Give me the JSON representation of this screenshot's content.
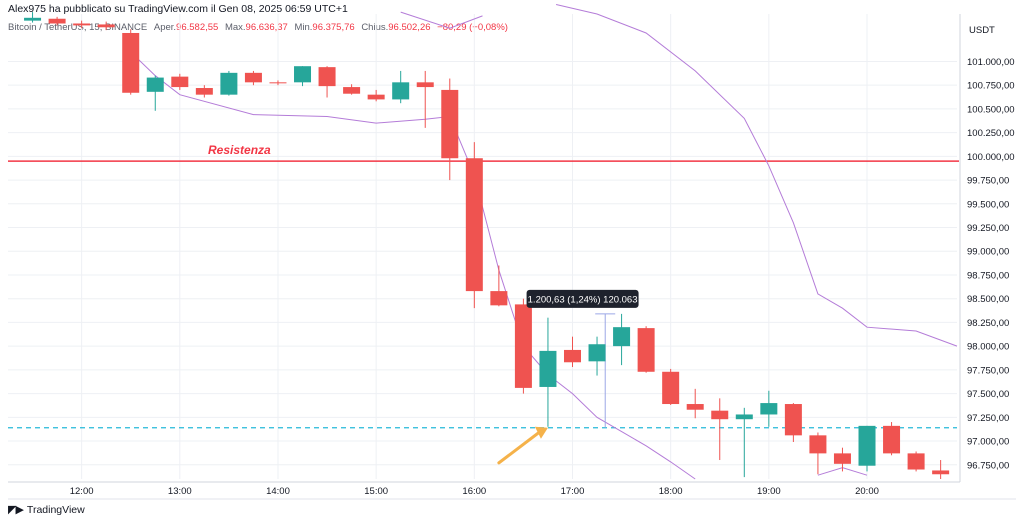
{
  "header": {
    "author_line": "Alex975 ha pubblicato su TradingView.com il Gen 08, 2025 06:59 UTC+1",
    "symbol": "Bitcoin / TetherUS, 15, BINANCE",
    "open_label": "Aper.",
    "open_value": "96.582,55",
    "high_label": "Max.",
    "high_value": "96.636,37",
    "low_label": "Min.",
    "low_value": "96.375,76",
    "close_label": "Chius.",
    "close_value": "96.502,26",
    "change_value": "−80,29 (−0,08%)"
  },
  "footer": {
    "brand": "TradingView"
  },
  "colors": {
    "up": "#26a69a",
    "down": "#ef5350",
    "resistance": "#f23645",
    "envelope": "#b47cd8",
    "dashed": "#26b9d9",
    "arrow": "#f5b24a"
  },
  "chart_data": {
    "type": "candlestick",
    "currency": "USDT",
    "xlim": [
      "11:15",
      "20:55"
    ],
    "ylim": [
      96600,
      101500
    ],
    "x_ticks": [
      "12:00",
      "13:00",
      "14:00",
      "15:00",
      "16:00",
      "17:00",
      "18:00",
      "19:00",
      "20:00"
    ],
    "y_ticks": [
      "101.000,00",
      "100.750,00",
      "100.500,00",
      "100.250,00",
      "100.000,00",
      "99.750,00",
      "99.500,00",
      "99.250,00",
      "99.000,00",
      "98.750,00",
      "98.500,00",
      "98.250,00",
      "98.000,00",
      "97.750,00",
      "97.500,00",
      "97.250,00",
      "97.000,00",
      "96.750,00"
    ],
    "candles": [
      {
        "t": "11:30",
        "o": 101430,
        "h": 101520,
        "l": 101410,
        "c": 101460
      },
      {
        "t": "11:45",
        "o": 101450,
        "h": 101470,
        "l": 101380,
        "c": 101400
      },
      {
        "t": "12:00",
        "o": 101400,
        "h": 101430,
        "l": 101350,
        "c": 101380
      },
      {
        "t": "12:15",
        "o": 101390,
        "h": 101420,
        "l": 101330,
        "c": 101360
      },
      {
        "t": "12:30",
        "o": 101300,
        "h": 101340,
        "l": 100650,
        "c": 100670
      },
      {
        "t": "12:45",
        "o": 100680,
        "h": 100850,
        "l": 100480,
        "c": 100830
      },
      {
        "t": "13:00",
        "o": 100840,
        "h": 100870,
        "l": 100700,
        "c": 100730
      },
      {
        "t": "13:15",
        "o": 100720,
        "h": 100750,
        "l": 100620,
        "c": 100650
      },
      {
        "t": "13:30",
        "o": 100650,
        "h": 100900,
        "l": 100640,
        "c": 100880
      },
      {
        "t": "13:45",
        "o": 100880,
        "h": 100900,
        "l": 100750,
        "c": 100780
      },
      {
        "t": "14:00",
        "o": 100780,
        "h": 100800,
        "l": 100750,
        "c": 100770
      },
      {
        "t": "14:15",
        "o": 100780,
        "h": 100950,
        "l": 100740,
        "c": 100950
      },
      {
        "t": "14:30",
        "o": 100940,
        "h": 100950,
        "l": 100620,
        "c": 100740
      },
      {
        "t": "14:45",
        "o": 100730,
        "h": 100760,
        "l": 100650,
        "c": 100660
      },
      {
        "t": "15:00",
        "o": 100650,
        "h": 100700,
        "l": 100580,
        "c": 100600
      },
      {
        "t": "15:15",
        "o": 100600,
        "h": 100900,
        "l": 100560,
        "c": 100780
      },
      {
        "t": "15:30",
        "o": 100780,
        "h": 100900,
        "l": 100300,
        "c": 100730
      },
      {
        "t": "15:45",
        "o": 100700,
        "h": 100820,
        "l": 99750,
        "c": 99980
      },
      {
        "t": "16:00",
        "o": 99980,
        "h": 100150,
        "l": 98400,
        "c": 98580
      },
      {
        "t": "16:15",
        "o": 98580,
        "h": 98850,
        "l": 98420,
        "c": 98430
      },
      {
        "t": "16:30",
        "o": 98440,
        "h": 98500,
        "l": 97500,
        "c": 97560
      },
      {
        "t": "16:45",
        "o": 97570,
        "h": 98300,
        "l": 97150,
        "c": 97950
      },
      {
        "t": "17:00",
        "o": 97960,
        "h": 98100,
        "l": 97780,
        "c": 97830
      },
      {
        "t": "17:15",
        "o": 97840,
        "h": 98100,
        "l": 97690,
        "c": 98020
      },
      {
        "t": "17:30",
        "o": 98000,
        "h": 98340,
        "l": 97800,
        "c": 98200
      },
      {
        "t": "17:45",
        "o": 98190,
        "h": 98210,
        "l": 97720,
        "c": 97730
      },
      {
        "t": "18:00",
        "o": 97730,
        "h": 97760,
        "l": 97380,
        "c": 97390
      },
      {
        "t": "18:15",
        "o": 97390,
        "h": 97550,
        "l": 97240,
        "c": 97330
      },
      {
        "t": "18:30",
        "o": 97320,
        "h": 97450,
        "l": 96800,
        "c": 97230
      },
      {
        "t": "18:45",
        "o": 97230,
        "h": 97350,
        "l": 96620,
        "c": 97280
      },
      {
        "t": "19:00",
        "o": 97280,
        "h": 97530,
        "l": 97150,
        "c": 97400
      },
      {
        "t": "19:15",
        "o": 97390,
        "h": 97400,
        "l": 96990,
        "c": 97060
      },
      {
        "t": "19:30",
        "o": 97060,
        "h": 97090,
        "l": 96650,
        "c": 96870
      },
      {
        "t": "19:45",
        "o": 96870,
        "h": 96930,
        "l": 96680,
        "c": 96760
      },
      {
        "t": "20:00",
        "o": 96740,
        "h": 97160,
        "l": 96680,
        "c": 97160
      },
      {
        "t": "20:15",
        "o": 97160,
        "h": 97200,
        "l": 96850,
        "c": 96870
      },
      {
        "t": "20:30",
        "o": 96870,
        "h": 96890,
        "l": 96680,
        "c": 96700
      },
      {
        "t": "20:45",
        "o": 96690,
        "h": 96800,
        "l": 96600,
        "c": 96650
      }
    ],
    "upper_band": [
      {
        "t": "16:50",
        "v": 101600
      },
      {
        "t": "17:15",
        "v": 101500
      },
      {
        "t": "17:45",
        "v": 101300
      },
      {
        "t": "18:15",
        "v": 100900
      },
      {
        "t": "18:45",
        "v": 100400
      },
      {
        "t": "19:00",
        "v": 99900
      },
      {
        "t": "19:15",
        "v": 99300
      },
      {
        "t": "19:30",
        "v": 98550
      },
      {
        "t": "19:45",
        "v": 98400
      },
      {
        "t": "20:00",
        "v": 98200
      },
      {
        "t": "20:30",
        "v": 98160
      },
      {
        "t": "20:55",
        "v": 98000
      }
    ],
    "lower_band": [
      {
        "t": "12:30",
        "v": 101100
      },
      {
        "t": "12:45",
        "v": 100850
      },
      {
        "t": "13:00",
        "v": 100650
      },
      {
        "t": "13:45",
        "v": 100440
      },
      {
        "t": "14:30",
        "v": 100420
      },
      {
        "t": "15:00",
        "v": 100350
      },
      {
        "t": "15:30",
        "v": 100390
      },
      {
        "t": "15:45",
        "v": 100420
      },
      {
        "t": "16:00",
        "v": 99800
      },
      {
        "t": "16:15",
        "v": 98800
      },
      {
        "t": "16:30",
        "v": 98000
      },
      {
        "t": "16:45",
        "v": 97700
      },
      {
        "t": "17:00",
        "v": 97500
      },
      {
        "t": "17:15",
        "v": 97250
      },
      {
        "t": "17:30",
        "v": 97100
      },
      {
        "t": "17:45",
        "v": 96950
      },
      {
        "t": "18:00",
        "v": 96780
      },
      {
        "t": "18:15",
        "v": 96600
      }
    ],
    "upper_band_top_left": [
      {
        "t": "15:15",
        "v": 101520
      },
      {
        "t": "15:45",
        "v": 101350
      },
      {
        "t": "16:05",
        "v": 101480
      }
    ],
    "lower_band_right": [
      {
        "t": "19:30",
        "v": 96640
      },
      {
        "t": "19:45",
        "v": 96720
      },
      {
        "t": "20:00",
        "v": 96640
      }
    ],
    "resistance": {
      "value": 99950,
      "label": "Resistenza"
    },
    "dashed_level": 97140,
    "measure": {
      "label": "1.200,63 (1,24%) 120.063",
      "t1": "16:45",
      "t2": "17:20",
      "p1": 97140,
      "p2": 98340
    },
    "arrow": {
      "from_t": "16:15",
      "from_v": 96770,
      "to_t": "16:45",
      "to_v": 97140
    }
  }
}
